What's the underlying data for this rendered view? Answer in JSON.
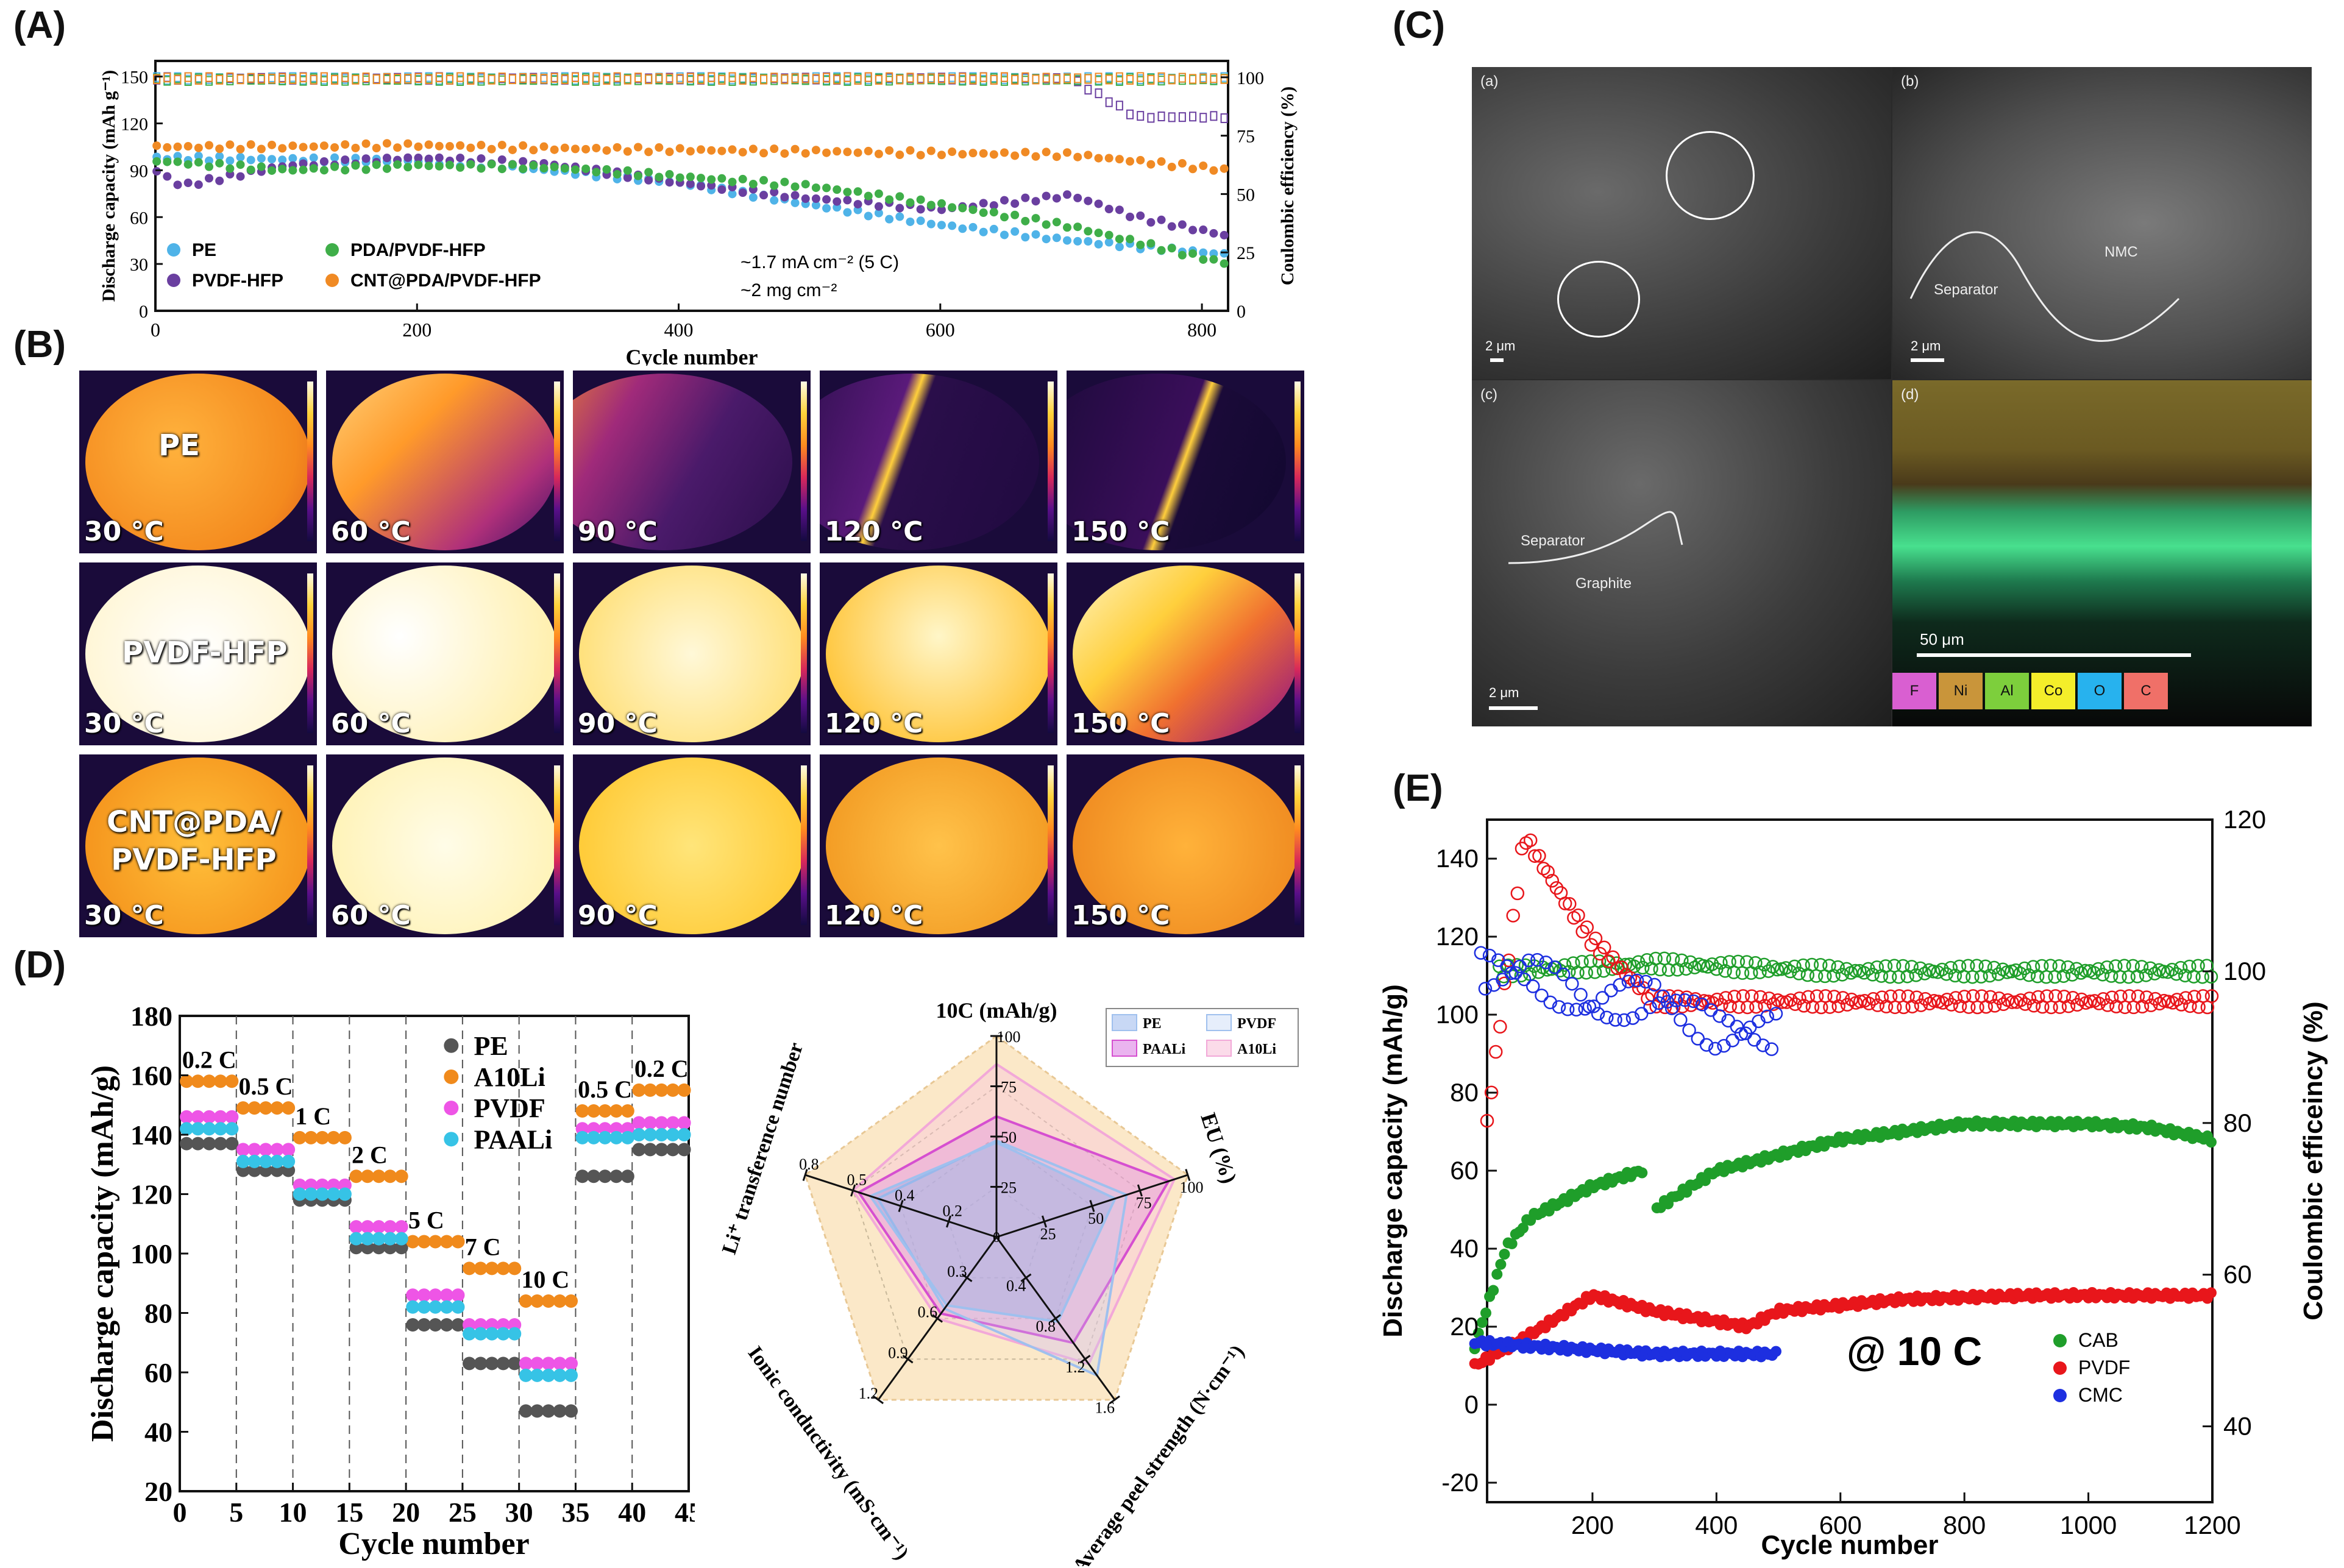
{
  "labels": {
    "A": "(A)",
    "B": "(B)",
    "C": "(C)",
    "D": "(D)",
    "E": "(E)"
  },
  "colors": {
    "PE": "#4fb3e8",
    "PVDF_HFP": "#6a3fa0",
    "PDA": "#3fae49",
    "CNT": "#f08a24",
    "CAB": "#1f9e2a",
    "PVDF": "#e8161b",
    "CMC": "#1d2fe0"
  },
  "chart_data": [
    {
      "panel": "A",
      "type": "scatter",
      "xlabel": "Cycle number",
      "ylabel": "Discharge capacity (mAh g⁻¹)",
      "ylabel2": "Coulombic efficiency (%)",
      "xlim": [
        0,
        820
      ],
      "ylim": [
        0,
        160
      ],
      "ylim2": [
        0,
        107
      ],
      "xticks": [
        "0",
        "200",
        "400",
        "600",
        "800"
      ],
      "yticks": [
        "0",
        "30",
        "60",
        "90",
        "120",
        "150"
      ],
      "y2ticks": [
        "0",
        "25",
        "50",
        "75",
        "100"
      ],
      "annotation": [
        "~1.7 mA cm⁻² (5 C)",
        "~2 mg cm⁻²"
      ],
      "series": [
        {
          "name": "PE",
          "x": [
            0,
            100,
            200,
            300,
            400,
            500,
            600,
            700,
            820
          ],
          "capacity": [
            98,
            97,
            96,
            90,
            82,
            68,
            55,
            45,
            36
          ],
          "ce": [
            99.5,
            99.5,
            99.5,
            99.5,
            99.5,
            99.5,
            99.5,
            99.5,
            99.5
          ]
        },
        {
          "name": "PVDF-HFP",
          "x": [
            0,
            20,
            100,
            200,
            300,
            400,
            500,
            600,
            700,
            750,
            820
          ],
          "capacity": [
            90,
            80,
            93,
            98,
            94,
            82,
            72,
            65,
            74,
            60,
            48
          ],
          "ce": [
            99.5,
            99.5,
            99.5,
            99.5,
            99.5,
            99.5,
            99.5,
            99.5,
            99.5,
            83,
            83
          ]
        },
        {
          "name": "PDA/PVDF-HFP",
          "x": [
            0,
            100,
            200,
            300,
            400,
            500,
            600,
            700,
            820
          ],
          "capacity": [
            96,
            90,
            93,
            92,
            86,
            80,
            68,
            54,
            30
          ],
          "ce": [
            99,
            99,
            99,
            99,
            99,
            99,
            99,
            99,
            99
          ]
        },
        {
          "name": "CNT@PDA/PVDF-HFP",
          "x": [
            0,
            100,
            200,
            300,
            400,
            500,
            600,
            700,
            820
          ],
          "capacity": [
            105,
            105,
            106,
            104,
            103,
            102,
            101,
            100,
            90
          ],
          "ce": [
            99.5,
            99.5,
            99.5,
            99.5,
            99.5,
            99.5,
            99.5,
            99.5,
            99.5
          ]
        }
      ]
    },
    {
      "panel": "D-left",
      "type": "scatter",
      "xlabel": "Cycle number",
      "ylabel": "Discharge capacity (mAh/g)",
      "xlim": [
        0,
        45
      ],
      "ylim": [
        20,
        180
      ],
      "xticks": [
        "0",
        "5",
        "10",
        "15",
        "20",
        "25",
        "30",
        "35",
        "40",
        "45"
      ],
      "yticks": [
        "20",
        "40",
        "60",
        "80",
        "100",
        "120",
        "140",
        "160",
        "180"
      ],
      "rate_labels": [
        "0.2 C",
        "0.5 C",
        "1 C",
        "2 C",
        "5 C",
        "7 C",
        "10 C",
        "0.5 C",
        "0.2 C"
      ],
      "series": [
        {
          "name": "PE",
          "values": [
            137,
            128,
            118,
            102,
            76,
            63,
            47,
            126,
            135
          ]
        },
        {
          "name": "A10Li",
          "values": [
            158,
            149,
            139,
            126,
            104,
            95,
            84,
            148,
            155
          ]
        },
        {
          "name": "PVDF",
          "values": [
            146,
            135,
            123,
            109,
            86,
            76,
            63,
            142,
            144
          ]
        },
        {
          "name": "PAALi",
          "values": [
            142,
            131,
            120,
            105,
            82,
            73,
            59,
            139,
            140
          ]
        }
      ]
    },
    {
      "panel": "D-right",
      "type": "radar",
      "axes": [
        {
          "label": "10C (mAh/g)",
          "ticks": [
            "25",
            "50",
            "75",
            "100"
          ]
        },
        {
          "label": "EU (%)",
          "ticks": [
            "25",
            "50",
            "75",
            "100"
          ]
        },
        {
          "label": "Average peel strength (N·cm⁻¹)",
          "ticks": [
            "0.4",
            "0.8",
            "1.2",
            "1.6"
          ]
        },
        {
          "label": "Ionic conductivity (mS·cm⁻¹)",
          "ticks": [
            "0.3",
            "0.6",
            "0.9",
            "1.2"
          ]
        },
        {
          "label": "Li⁺ transference number",
          "ticks": [
            "0.2",
            "0.4",
            "0.5",
            "0.8"
          ]
        }
      ],
      "series": [
        {
          "name": "PE",
          "values": [
            0.47,
            0.62,
            0.52,
            0.42,
            0.66
          ]
        },
        {
          "name": "PVDF",
          "values": [
            0.48,
            0.68,
            0.85,
            0.44,
            0.62
          ]
        },
        {
          "name": "PAALi",
          "values": [
            0.6,
            0.9,
            0.65,
            0.47,
            0.72
          ]
        },
        {
          "name": "A10Li",
          "values": [
            0.86,
            0.93,
            0.78,
            0.5,
            0.75
          ]
        }
      ]
    },
    {
      "panel": "E",
      "type": "scatter",
      "xlabel": "Cycle number",
      "ylabel": "Discharge capacity (mAh/g)",
      "ylabel2": "Coulombic efficeincy (%)",
      "annotation": "@ 10 C",
      "xlim": [
        0,
        1200
      ],
      "ylim": [
        -25,
        150
      ],
      "ylim2": [
        30,
        120
      ],
      "xticks": [
        "200",
        "400",
        "600",
        "800",
        "1000",
        "1200"
      ],
      "yticks": [
        "-20",
        "0",
        "20",
        "40",
        "60",
        "80",
        "100",
        "120",
        "140"
      ],
      "y2ticks": [
        "40",
        "60",
        "80",
        "100",
        "120"
      ],
      "series": [
        {
          "name": "CAB",
          "x": [
            10,
            60,
            100,
            200,
            280,
            300,
            400,
            600,
            800,
            1000,
            1100,
            1200
          ],
          "capacity": [
            15,
            40,
            48,
            56,
            60,
            50,
            60,
            68,
            72,
            72,
            71,
            68
          ],
          "ce_x": [
            50,
            300,
            600,
            900,
            1200
          ],
          "ce": [
            100,
            101,
            100,
            100,
            100
          ]
        },
        {
          "name": "PVDF",
          "x": [
            10,
            100,
            200,
            300,
            450,
            500,
            700,
            900,
            1200
          ],
          "capacity": [
            10,
            18,
            28,
            24,
            20,
            24,
            27,
            28,
            28
          ],
          "ce_x": [
            30,
            90,
            150,
            200,
            300,
            600,
            900,
            1200
          ],
          "ce": [
            80,
            118,
            110,
            104,
            96,
            96,
            96,
            96
          ],
          "ce_drop": [
            [
              80,
              118
            ],
            [
              200,
              104
            ]
          ]
        },
        {
          "name": "CMC",
          "x": [
            10,
            100,
            200,
            300,
            400,
            500
          ],
          "capacity": [
            16,
            15,
            14,
            13,
            13,
            13
          ],
          "ce_x": [
            20,
            100,
            200,
            300,
            400,
            500
          ],
          "ce": [
            100,
            100,
            95,
            97,
            92,
            92
          ]
        }
      ]
    }
  ],
  "A": {
    "legend": [
      "PE",
      "PVDF-HFP",
      "PDA/PVDF-HFP",
      "CNT@PDA/PVDF-HFP"
    ]
  },
  "B": {
    "rows": [
      {
        "material": "PE",
        "temps": [
          "30 °C",
          "60 °C",
          "90 °C",
          "120 °C",
          "150 °C"
        ]
      },
      {
        "material": "PVDF-HFP",
        "temps": [
          "30 °C",
          "60 °C",
          "90 °C",
          "120 °C",
          "150 °C"
        ]
      },
      {
        "material": "CNT@PDA/\nPVDF-HFP",
        "temps": [
          "30 °C",
          "60 °C",
          "90 °C",
          "120 °C",
          "150 °C"
        ]
      }
    ]
  },
  "C": {
    "quad_labels": [
      "(a)",
      "(b)",
      "(c)",
      "(d)"
    ],
    "scale_bars": [
      "2 μm",
      "2 μm",
      "2 μm",
      "50 μm"
    ],
    "texts": {
      "separator_b": "Separator",
      "nmc": "NMC",
      "separator_c": "Separator",
      "graphite": "Graphite"
    },
    "eds_legend": [
      "F",
      "Ni",
      "Al",
      "Co",
      "O",
      "C"
    ],
    "eds_colors": [
      "#d95fd1",
      "#c9953a",
      "#7dcf3c",
      "#f4ee2a",
      "#27b2ee",
      "#f07068"
    ]
  },
  "D": {
    "legend": [
      "PE",
      "A10Li",
      "PVDF",
      "PAALi"
    ]
  },
  "E": {
    "legend": [
      "CAB",
      "PVDF",
      "CMC"
    ]
  }
}
